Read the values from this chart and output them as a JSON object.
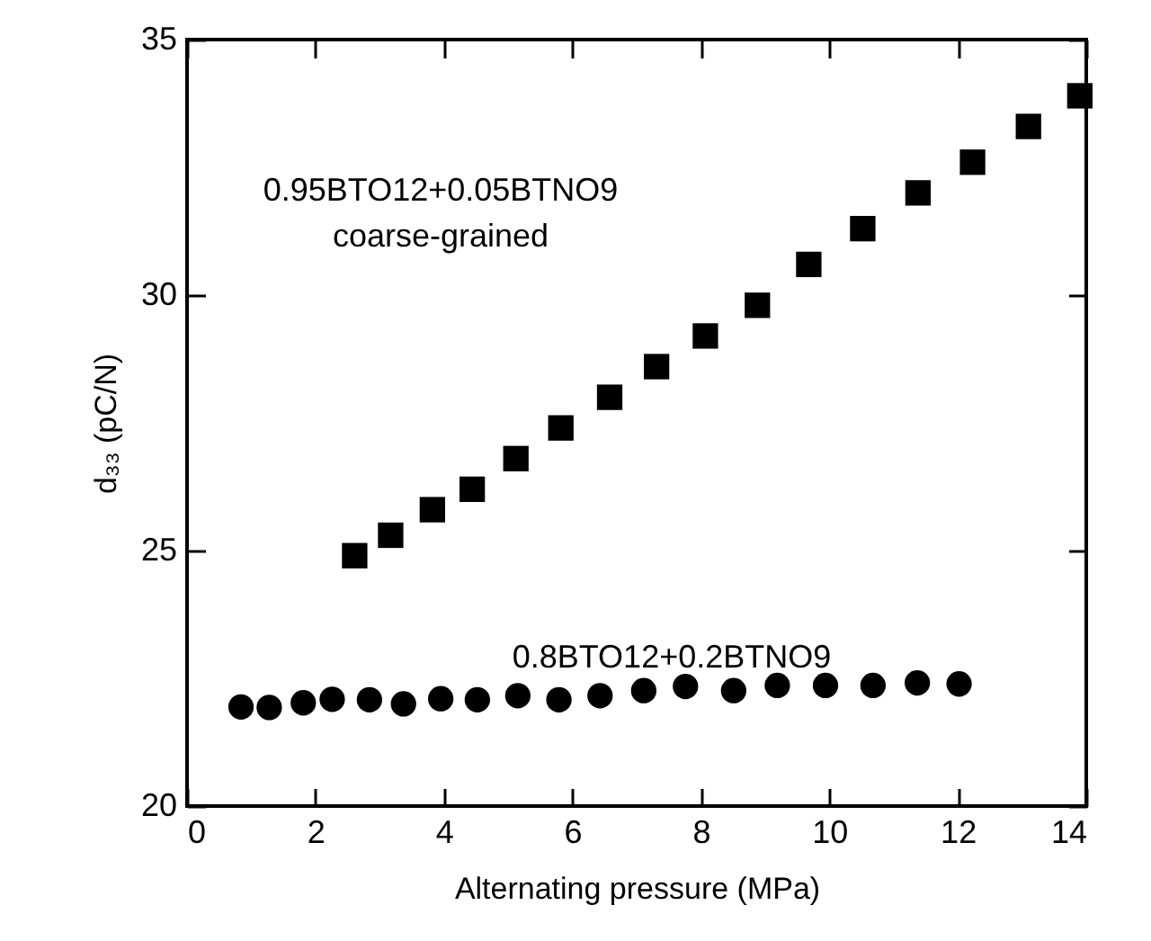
{
  "chart_data": {
    "type": "scatter",
    "xlabel": "Alternating pressure (MPa)",
    "ylabel": "d₃₃ (pC/N)",
    "xlim": [
      0,
      14
    ],
    "xticks": [
      0,
      2,
      4,
      6,
      8,
      10,
      12,
      14
    ],
    "ylim": [
      20,
      35
    ],
    "yticks": [
      20,
      25,
      30,
      35
    ],
    "grid": false,
    "series": [
      {
        "color": "#000000",
        "marker": "square",
        "x": [
          2.61,
          3.17,
          3.82,
          4.44,
          5.12,
          5.82,
          6.58,
          7.31,
          8.07,
          8.88,
          9.68,
          10.52,
          11.38,
          12.23,
          13.1,
          13.9
        ],
        "values": [
          24.9,
          25.3,
          25.8,
          26.2,
          26.8,
          27.4,
          28.0,
          28.6,
          29.2,
          29.8,
          30.6,
          31.3,
          32.0,
          32.6,
          33.3,
          33.9
        ]
      },
      {
        "color": "#000000",
        "marker": "circle",
        "x": [
          0.84,
          1.28,
          1.81,
          2.26,
          2.84,
          3.37,
          3.95,
          4.52,
          5.15,
          5.79,
          6.43,
          7.11,
          7.76,
          8.51,
          9.19,
          9.94,
          10.68,
          11.37,
          12.02
        ],
        "values": [
          21.94,
          21.93,
          22.02,
          22.09,
          22.08,
          22.0,
          22.1,
          22.08,
          22.16,
          22.08,
          22.16,
          22.26,
          22.34,
          22.26,
          22.36,
          22.36,
          22.36,
          22.41,
          22.39
        ]
      }
    ],
    "annotations": [
      "0.95BTO12+0.05BTNO9",
      "coarse-grained",
      "0.8BTO12+0.2BTNO9"
    ]
  }
}
